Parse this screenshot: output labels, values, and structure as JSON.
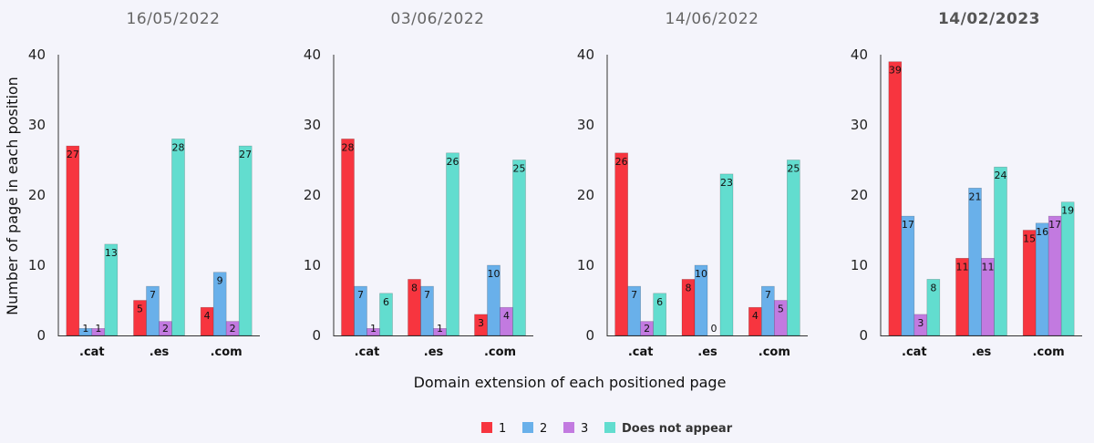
{
  "chart_data": {
    "type": "bar",
    "ylabel": "Number of page in each position",
    "xlabel": "Domain extension of each positioned page",
    "ylim": [
      0,
      40
    ],
    "yticks": [
      0,
      10,
      20,
      30,
      40
    ],
    "categories": [
      ".cat",
      ".es",
      ".com"
    ],
    "legend": {
      "placement": "bottom-center",
      "items": [
        {
          "name": "1",
          "color": "#f7353f"
        },
        {
          "name": "2",
          "color": "#69b0ea"
        },
        {
          "name": "3",
          "color": "#c27ae0"
        },
        {
          "name": "Does not appear",
          "color": "#62ddcf"
        }
      ]
    },
    "panels": [
      {
        "title": "16/05/2022",
        "title_bold": false,
        "series": [
          {
            "name": "1",
            "values": [
              27,
              5,
              4
            ]
          },
          {
            "name": "2",
            "values": [
              1,
              7,
              9
            ]
          },
          {
            "name": "3",
            "values": [
              1,
              2,
              2
            ]
          },
          {
            "name": "Does not appear",
            "values": [
              13,
              28,
              27
            ]
          }
        ]
      },
      {
        "title": "03/06/2022",
        "title_bold": false,
        "series": [
          {
            "name": "1",
            "values": [
              28,
              8,
              3
            ]
          },
          {
            "name": "2",
            "values": [
              7,
              7,
              10
            ]
          },
          {
            "name": "3",
            "values": [
              1,
              1,
              4
            ]
          },
          {
            "name": "Does not appear",
            "values": [
              6,
              26,
              25
            ]
          }
        ]
      },
      {
        "title": "14/06/2022",
        "title_bold": false,
        "series": [
          {
            "name": "1",
            "values": [
              26,
              8,
              4
            ]
          },
          {
            "name": "2",
            "values": [
              7,
              10,
              7
            ]
          },
          {
            "name": "3",
            "values": [
              2,
              0,
              5
            ]
          },
          {
            "name": "Does not appear",
            "values": [
              6,
              23,
              25
            ]
          }
        ]
      },
      {
        "title": "14/02/2023",
        "title_bold": true,
        "series": [
          {
            "name": "1",
            "values": [
              39,
              11,
              15
            ]
          },
          {
            "name": "2",
            "values": [
              17,
              21,
              16
            ]
          },
          {
            "name": "3",
            "values": [
              3,
              11,
              17
            ]
          },
          {
            "name": "Does not appear",
            "values": [
              8,
              24,
              19
            ]
          }
        ]
      }
    ]
  }
}
